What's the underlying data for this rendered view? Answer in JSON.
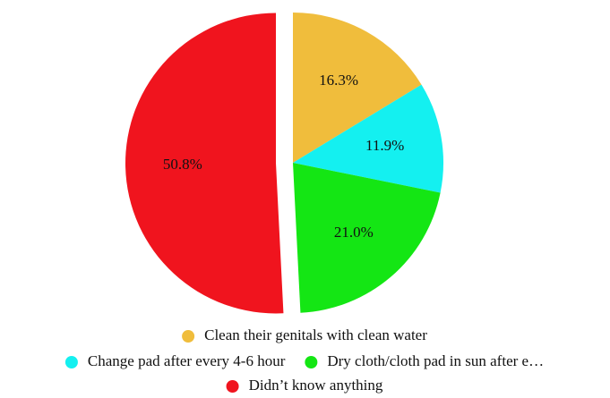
{
  "chart_data": {
    "type": "pie",
    "title": "",
    "slices": [
      {
        "label": "Clean their genitals with clean water",
        "value": 16.3,
        "display": "16.3%",
        "color": "#f0bd3c"
      },
      {
        "label": "Change pad after every 4-6 hour",
        "value": 11.9,
        "display": "11.9%",
        "color": "#14f0f0"
      },
      {
        "label": "Dry cloth/cloth pad in sun after e…",
        "value": 21.0,
        "display": "21.0%",
        "color": "#14e614"
      },
      {
        "label": "Didn’t know anything",
        "value": 50.8,
        "display": "50.8%",
        "color": "#f0141e"
      }
    ],
    "exploded_slice": "Didn’t know anything",
    "start_angle_deg": 0,
    "direction": "clockwise",
    "legend_position": "bottom"
  }
}
